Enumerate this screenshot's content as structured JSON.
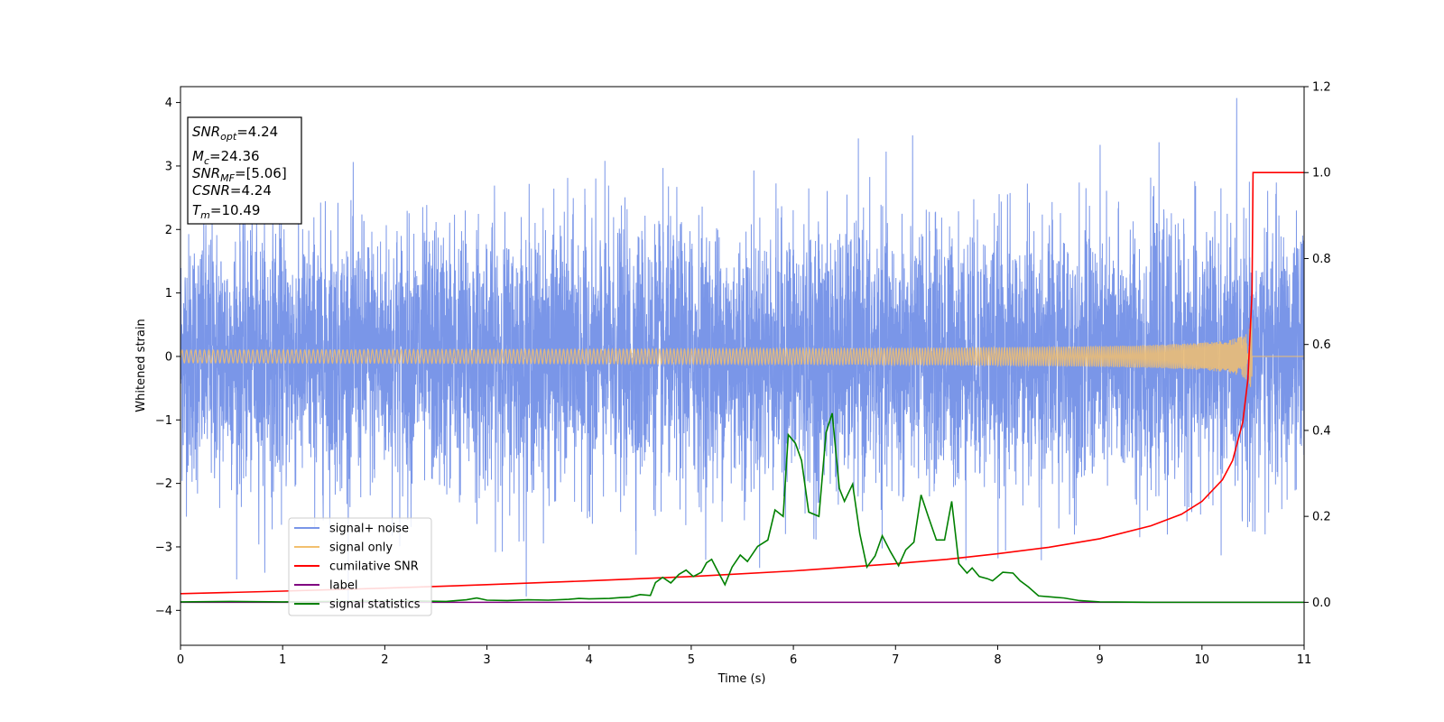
{
  "chart_data": {
    "type": "line",
    "xlabel": "Time (s)",
    "ylabel": "Whitened strain",
    "xlim": [
      0,
      11
    ],
    "ylim": [
      -4.55,
      4.25
    ],
    "y2lim": [
      -0.1,
      1.2
    ],
    "xticks": [
      0,
      1,
      2,
      3,
      4,
      5,
      6,
      7,
      8,
      9,
      10,
      11
    ],
    "yticks": [
      -4,
      -3,
      -2,
      -1,
      0,
      1,
      2,
      3,
      4
    ],
    "y2ticks": [
      "0.0",
      "0.2",
      "0.4",
      "0.6",
      "0.8",
      "1.0",
      "1.2"
    ],
    "grid": false,
    "legend_position": "lower-left",
    "annotation": {
      "lines": [
        {
          "base": "SNR",
          "sub": "opt",
          "value": "=4.24"
        },
        {
          "base": "M",
          "sub": "c",
          "value": "=24.36"
        },
        {
          "base": "SNR",
          "sub": "MF",
          "value": "=[5.06]"
        },
        {
          "base": "CSNR",
          "sub": "",
          "value": "=4.24"
        },
        {
          "base": "T",
          "sub": "m",
          "value": "=10.49"
        }
      ]
    },
    "series": [
      {
        "name": "signal+ noise",
        "color": "#7a96e8",
        "axis": "left",
        "kind": "noise",
        "t_start": 0,
        "t_end": 11,
        "sigma": 1.0,
        "max_abs": 3.85
      },
      {
        "name": "signal only",
        "color": "#f2c06e",
        "axis": "left",
        "kind": "chirp",
        "t_start": 0,
        "t_merge": 10.49,
        "t_end": 11,
        "peak_amplitude": 0.65
      },
      {
        "name": "cumilative SNR",
        "color": "#ff0000",
        "axis": "right",
        "kind": "line",
        "x": [
          0,
          1,
          2,
          3,
          4,
          5,
          6,
          7,
          7.5,
          8,
          8.5,
          9,
          9.5,
          9.8,
          10.0,
          10.2,
          10.3,
          10.4,
          10.45,
          10.49,
          10.5,
          11
        ],
        "y": [
          0.02,
          0.026,
          0.033,
          0.041,
          0.05,
          0.06,
          0.073,
          0.09,
          0.1,
          0.113,
          0.128,
          0.148,
          0.178,
          0.205,
          0.235,
          0.285,
          0.33,
          0.42,
          0.52,
          0.72,
          1.0,
          1.0
        ]
      },
      {
        "name": "label",
        "color": "#800080",
        "axis": "right",
        "kind": "line",
        "x": [
          0,
          11
        ],
        "y": [
          0,
          0
        ]
      },
      {
        "name": "signal statistics",
        "color": "#008000",
        "axis": "right",
        "kind": "line",
        "x": [
          0,
          0.5,
          1,
          1.5,
          2,
          2.3,
          2.6,
          2.8,
          2.9,
          3.0,
          3.2,
          3.4,
          3.6,
          3.8,
          3.9,
          4.0,
          4.2,
          4.3,
          4.4,
          4.5,
          4.6,
          4.65,
          4.72,
          4.8,
          4.88,
          4.95,
          5.02,
          5.1,
          5.15,
          5.2,
          5.25,
          5.33,
          5.4,
          5.48,
          5.55,
          5.65,
          5.75,
          5.82,
          5.9,
          5.95,
          6.02,
          6.08,
          6.15,
          6.25,
          6.32,
          6.38,
          6.45,
          6.5,
          6.58,
          6.65,
          6.72,
          6.8,
          6.87,
          6.95,
          7.03,
          7.1,
          7.18,
          7.25,
          7.32,
          7.4,
          7.48,
          7.55,
          7.62,
          7.7,
          7.75,
          7.82,
          7.9,
          7.95,
          8.05,
          8.15,
          8.22,
          8.3,
          8.4,
          8.55,
          8.65,
          8.8,
          9.0,
          9.5,
          10,
          11
        ],
        "y": [
          0.001,
          0.002,
          0.001,
          0.002,
          0.003,
          0.003,
          0.002,
          0.006,
          0.01,
          0.005,
          0.004,
          0.006,
          0.005,
          0.007,
          0.009,
          0.008,
          0.009,
          0.011,
          0.012,
          0.018,
          0.016,
          0.046,
          0.058,
          0.045,
          0.065,
          0.075,
          0.06,
          0.07,
          0.092,
          0.1,
          0.077,
          0.041,
          0.082,
          0.11,
          0.095,
          0.13,
          0.145,
          0.215,
          0.2,
          0.39,
          0.37,
          0.33,
          0.21,
          0.2,
          0.395,
          0.44,
          0.265,
          0.235,
          0.275,
          0.16,
          0.082,
          0.108,
          0.155,
          0.118,
          0.085,
          0.122,
          0.14,
          0.25,
          0.2,
          0.145,
          0.145,
          0.235,
          0.09,
          0.068,
          0.08,
          0.06,
          0.055,
          0.05,
          0.07,
          0.068,
          0.05,
          0.036,
          0.015,
          0.012,
          0.01,
          0.004,
          0.001,
          0.0,
          0.0,
          0.0
        ]
      }
    ]
  }
}
